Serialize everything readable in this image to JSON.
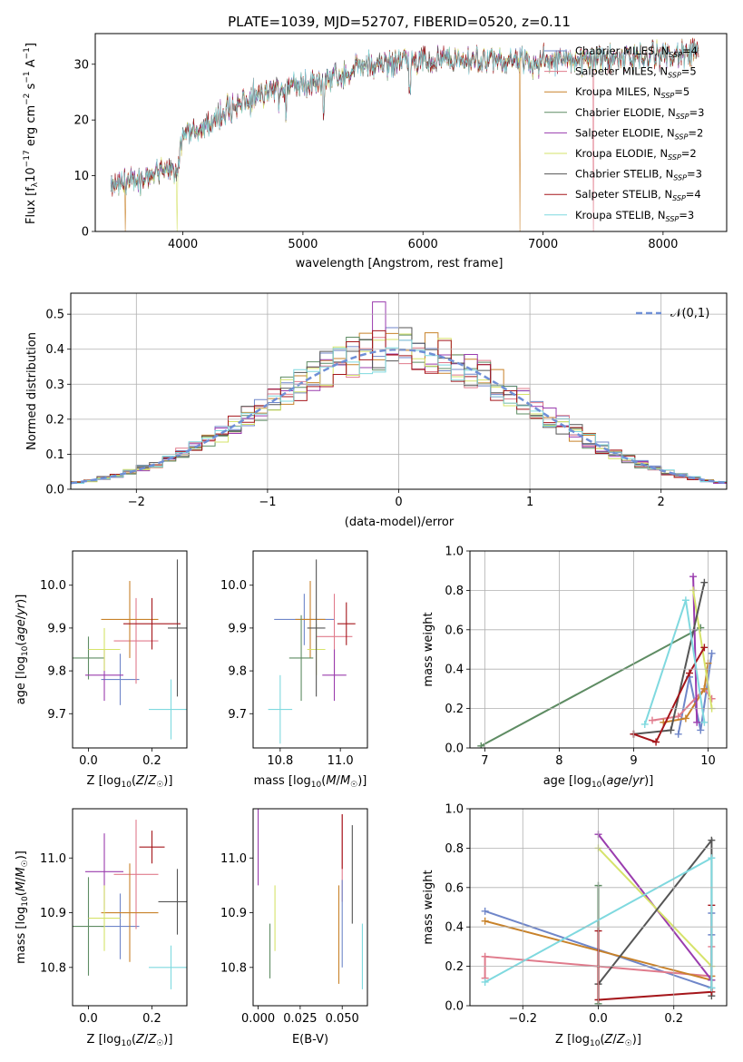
{
  "figure": {
    "title": "PLATE=1039, MJD=52707, FIBERID=0520, z=0.11"
  },
  "models": [
    {
      "name": "Chabrier MILES",
      "nssp": "4",
      "color": "#6f86c9"
    },
    {
      "name": "Salpeter MILES",
      "nssp": "5",
      "color": "#e07b8c"
    },
    {
      "name": "Kroupa MILES",
      "nssp": "5",
      "color": "#c8822a"
    },
    {
      "name": "Chabrier ELODIE",
      "nssp": "3",
      "color": "#5e8c63"
    },
    {
      "name": "Salpeter ELODIE",
      "nssp": "2",
      "color": "#9a3cae"
    },
    {
      "name": "Kroupa ELODIE",
      "nssp": "2",
      "color": "#d6e36a"
    },
    {
      "name": "Chabrier STELIB",
      "nssp": "3",
      "color": "#555555"
    },
    {
      "name": "Salpeter STELIB",
      "nssp": "4",
      "color": "#a5161b"
    },
    {
      "name": "Kroupa STELIB",
      "nssp": "3",
      "color": "#7fd9df"
    }
  ],
  "chart_data": [
    {
      "id": "spectrum",
      "type": "line",
      "xlabel": "wavelength [Angstrom, rest frame]",
      "ylabel": "Flux [f_λ 10^-17 erg cm^-2 s^-1 A^-1]",
      "xlim": [
        3270,
        8530
      ],
      "ylim": [
        0,
        35.5
      ],
      "xticks": [
        4000,
        5000,
        6000,
        7000,
        8000
      ],
      "yticks": [
        0,
        10,
        20,
        30
      ],
      "continuum": [
        [
          3400,
          8
        ],
        [
          3700,
          10
        ],
        [
          3950,
          11
        ],
        [
          4000,
          17
        ],
        [
          4200,
          19
        ],
        [
          4400,
          22
        ],
        [
          4700,
          25
        ],
        [
          5000,
          26.5
        ],
        [
          5200,
          27
        ],
        [
          5500,
          29.5
        ],
        [
          5800,
          30.5
        ],
        [
          6000,
          30.5
        ],
        [
          6200,
          31
        ],
        [
          6500,
          30.5
        ],
        [
          7000,
          30.5
        ],
        [
          7500,
          31
        ],
        [
          8000,
          31.5
        ],
        [
          8300,
          32
        ]
      ],
      "dropouts": [
        3950,
        6810,
        7420
      ]
    },
    {
      "id": "residual-histogram",
      "type": "step-histogram",
      "xlabel": "(data-model)/error",
      "ylabel": "Normed distribution",
      "xlim": [
        -2.5,
        2.5
      ],
      "ylim": [
        0,
        0.56
      ],
      "xticks": [
        -2,
        -1,
        0,
        1,
        2
      ],
      "yticks": [
        0,
        0.1,
        0.2,
        0.3,
        0.4,
        0.5
      ],
      "bin_width": 0.1,
      "reference": {
        "label": "𝒩(0,1)",
        "mu": 0,
        "sigma": 1,
        "color": "#6f8fd6"
      },
      "grid": true,
      "legend_position": "upper right"
    },
    {
      "id": "age-vs-Z",
      "type": "errorbar",
      "xlabel": "Z [log10(Z/Z☉)]",
      "ylabel": "age [log10(age/yr)]",
      "xlim": [
        -0.05,
        0.31
      ],
      "ylim": [
        9.62,
        10.08
      ],
      "xticks": [
        0.0,
        0.2
      ],
      "yticks": [
        9.7,
        9.8,
        9.9,
        10.0
      ],
      "points": [
        {
          "x": 0.1,
          "y": 9.78,
          "xe": 0.06,
          "ye": 0.06,
          "c": 0
        },
        {
          "x": 0.15,
          "y": 9.87,
          "xe": 0.07,
          "ye": 0.1,
          "c": 1
        },
        {
          "x": 0.13,
          "y": 9.92,
          "xe": 0.09,
          "ye": 0.09,
          "c": 2
        },
        {
          "x": 0.0,
          "y": 9.83,
          "xe": 0.05,
          "ye": 0.05,
          "c": 3
        },
        {
          "x": 0.05,
          "y": 9.79,
          "xe": 0.06,
          "ye": 0.06,
          "c": 4
        },
        {
          "x": 0.05,
          "y": 9.85,
          "xe": 0.05,
          "ye": 0.05,
          "c": 5
        },
        {
          "x": 0.28,
          "y": 9.9,
          "xe": 0.03,
          "ye": 0.16,
          "c": 6
        },
        {
          "x": 0.2,
          "y": 9.91,
          "xe": 0.09,
          "ye": 0.06,
          "c": 7
        },
        {
          "x": 0.26,
          "y": 9.71,
          "xe": 0.07,
          "ye": 0.07,
          "c": 8
        }
      ]
    },
    {
      "id": "age-vs-mass",
      "type": "errorbar",
      "xlabel": "mass [log10(M/M☉)]",
      "ylabel": "",
      "xlim": [
        10.71,
        11.09
      ],
      "ylim": [
        9.62,
        10.08
      ],
      "xticks": [
        10.8,
        11.0
      ],
      "yticks": [
        9.7,
        9.8,
        9.9,
        10.0
      ],
      "points": [
        {
          "x": 10.88,
          "y": 9.92,
          "xe": 0.1,
          "ye": 0.06,
          "c": 0
        },
        {
          "x": 10.98,
          "y": 9.88,
          "xe": 0.06,
          "ye": 0.1,
          "c": 1
        },
        {
          "x": 10.9,
          "y": 9.92,
          "xe": 0.05,
          "ye": 0.09,
          "c": 2
        },
        {
          "x": 10.87,
          "y": 9.83,
          "xe": 0.04,
          "ye": 0.1,
          "c": 3
        },
        {
          "x": 10.98,
          "y": 9.79,
          "xe": 0.04,
          "ye": 0.06,
          "c": 4
        },
        {
          "x": 10.92,
          "y": 9.85,
          "xe": 0.03,
          "ye": 0.06,
          "c": 5
        },
        {
          "x": 10.92,
          "y": 9.9,
          "xe": 0.03,
          "ye": 0.16,
          "c": 6
        },
        {
          "x": 11.02,
          "y": 9.91,
          "xe": 0.03,
          "ye": 0.05,
          "c": 7
        },
        {
          "x": 10.8,
          "y": 9.71,
          "xe": 0.04,
          "ye": 0.08,
          "c": 8
        }
      ]
    },
    {
      "id": "weight-vs-age",
      "type": "line",
      "xlabel": "age [log10(age/yr)]",
      "ylabel": "mass weight",
      "xlim": [
        6.8,
        10.25
      ],
      "ylim": [
        0,
        1
      ],
      "xticks": [
        7,
        8,
        9,
        10
      ],
      "yticks": [
        0.0,
        0.2,
        0.4,
        0.6,
        0.8,
        1.0
      ],
      "grid": true,
      "series": [
        {
          "c": 0,
          "x": [
            9.6,
            9.75,
            9.9,
            10.05
          ],
          "y": [
            0.07,
            0.36,
            0.09,
            0.48
          ]
        },
        {
          "c": 1,
          "x": [
            9.25,
            9.6,
            9.95,
            10.05
          ],
          "y": [
            0.14,
            0.16,
            0.3,
            0.25
          ]
        },
        {
          "c": 2,
          "x": [
            9.4,
            9.7,
            9.95,
            10.0
          ],
          "y": [
            0.13,
            0.15,
            0.3,
            0.43
          ]
        },
        {
          "c": 3,
          "x": [
            6.95,
            9.9
          ],
          "y": [
            0.01,
            0.61
          ]
        },
        {
          "c": 4,
          "x": [
            9.8,
            9.85
          ],
          "y": [
            0.87,
            0.13
          ]
        },
        {
          "c": 5,
          "x": [
            9.8,
            10.05
          ],
          "y": [
            0.8,
            0.2
          ]
        },
        {
          "c": 6,
          "x": [
            9.0,
            9.5,
            9.95
          ],
          "y": [
            0.07,
            0.09,
            0.84
          ]
        },
        {
          "c": 7,
          "x": [
            9.0,
            9.3,
            9.75,
            9.95
          ],
          "y": [
            0.07,
            0.03,
            0.38,
            0.51
          ]
        },
        {
          "c": 8,
          "x": [
            9.15,
            9.7,
            9.95
          ],
          "y": [
            0.12,
            0.75,
            0.13
          ]
        }
      ]
    },
    {
      "id": "mass-vs-Z",
      "type": "errorbar",
      "xlabel": "Z [log10(Z/Z☉)]",
      "ylabel": "mass [log10(M/M☉)]",
      "xlim": [
        -0.05,
        0.31
      ],
      "ylim": [
        10.73,
        11.09
      ],
      "xticks": [
        0.0,
        0.2
      ],
      "yticks": [
        10.8,
        10.9,
        11.0
      ],
      "points": [
        {
          "x": 0.1,
          "y": 10.875,
          "xe": 0.06,
          "ye": 0.06,
          "c": 0
        },
        {
          "x": 0.15,
          "y": 10.97,
          "xe": 0.07,
          "ye": 0.1,
          "c": 1
        },
        {
          "x": 0.13,
          "y": 10.9,
          "xe": 0.09,
          "ye": 0.09,
          "c": 2
        },
        {
          "x": 0.0,
          "y": 10.875,
          "xe": 0.05,
          "ye": 0.09,
          "c": 3
        },
        {
          "x": 0.05,
          "y": 10.975,
          "xe": 0.06,
          "ye": 0.07,
          "c": 4
        },
        {
          "x": 0.05,
          "y": 10.89,
          "xe": 0.05,
          "ye": 0.06,
          "c": 5
        },
        {
          "x": 0.28,
          "y": 10.92,
          "xe": 0.06,
          "ye": 0.06,
          "c": 6
        },
        {
          "x": 0.2,
          "y": 11.02,
          "xe": 0.04,
          "ye": 0.03,
          "c": 7
        },
        {
          "x": 0.26,
          "y": 10.8,
          "xe": 0.07,
          "ye": 0.04,
          "c": 8
        }
      ]
    },
    {
      "id": "mass-vs-ebv",
      "type": "errorbar",
      "xlabel": "E(B-V)",
      "ylabel": "",
      "xlim": [
        -0.003,
        0.065
      ],
      "ylim": [
        10.73,
        11.09
      ],
      "xticks": [
        0.0,
        0.025,
        0.05
      ],
      "yticks": [
        10.8,
        10.9,
        11.0
      ],
      "xticklabels": [
        "0.000",
        "0.025",
        "0.050"
      ],
      "points": [
        {
          "x": 0.0,
          "y": 11.05,
          "xe": 0,
          "ye": 0.1,
          "c": 4
        },
        {
          "x": 0.007,
          "y": 10.83,
          "xe": 0,
          "ye": 0.05,
          "c": 3
        },
        {
          "x": 0.01,
          "y": 10.89,
          "xe": 0,
          "ye": 0.06,
          "c": 5
        },
        {
          "x": 0.048,
          "y": 10.86,
          "xe": 0,
          "ye": 0.09,
          "c": 2
        },
        {
          "x": 0.05,
          "y": 11.0,
          "xe": 0,
          "ye": 0.08,
          "c": 1
        },
        {
          "x": 0.05,
          "y": 11.03,
          "xe": 0,
          "ye": 0.05,
          "c": 7
        },
        {
          "x": 0.05,
          "y": 10.88,
          "xe": 0,
          "ye": 0.08,
          "c": 0
        },
        {
          "x": 0.056,
          "y": 10.97,
          "xe": 0,
          "ye": 0.09,
          "c": 6
        },
        {
          "x": 0.062,
          "y": 10.82,
          "xe": 0,
          "ye": 0.06,
          "c": 8
        }
      ]
    },
    {
      "id": "weight-vs-Z",
      "type": "line",
      "xlabel": "Z [log10(Z/Z☉)]",
      "ylabel": "mass weight",
      "xlim": [
        -0.34,
        0.34
      ],
      "ylim": [
        0,
        1
      ],
      "xticks": [
        -0.2,
        0.0,
        0.2
      ],
      "yticks": [
        0.0,
        0.2,
        0.4,
        0.6,
        0.8,
        1.0
      ],
      "grid": true,
      "series": [
        {
          "c": 0,
          "x": [
            -0.3,
            0.3,
            0.3,
            0.3
          ],
          "y": [
            0.48,
            0.09,
            0.36,
            0.47
          ]
        },
        {
          "c": 1,
          "x": [
            -0.3,
            -0.3,
            0.3,
            0.3
          ],
          "y": [
            0.14,
            0.25,
            0.15,
            0.3
          ]
        },
        {
          "c": 2,
          "x": [
            -0.3,
            0.3,
            0.3
          ],
          "y": [
            0.43,
            0.13,
            0.15
          ]
        },
        {
          "c": 3,
          "x": [
            0.0,
            0.0
          ],
          "y": [
            0.01,
            0.61
          ]
        },
        {
          "c": 4,
          "x": [
            0.0,
            0.3
          ],
          "y": [
            0.87,
            0.13
          ]
        },
        {
          "c": 5,
          "x": [
            0.0,
            0.3
          ],
          "y": [
            0.8,
            0.2
          ]
        },
        {
          "c": 6,
          "x": [
            0.0,
            0.3,
            0.3
          ],
          "y": [
            0.11,
            0.84,
            0.05
          ]
        },
        {
          "c": 7,
          "x": [
            0.0,
            0.0,
            0.3,
            0.3
          ],
          "y": [
            0.38,
            0.03,
            0.07,
            0.51
          ]
        },
        {
          "c": 8,
          "x": [
            -0.3,
            0.3,
            0.3
          ],
          "y": [
            0.12,
            0.75,
            0.09
          ]
        }
      ]
    }
  ]
}
